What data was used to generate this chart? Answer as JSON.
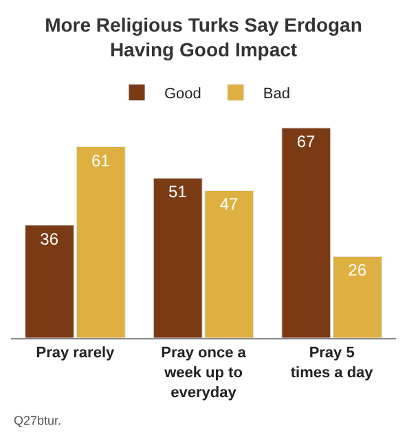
{
  "chart_data": {
    "type": "bar",
    "title": "More Religious Turks Say Erdogan Having Good Impact",
    "categories": [
      "Pray rarely",
      "Pray once a week up to everyday",
      "Pray 5 times a day"
    ],
    "series": [
      {
        "name": "Good",
        "color": "#7a3b14",
        "values": [
          36,
          51,
          67
        ]
      },
      {
        "name": "Bad",
        "color": "#deb041",
        "values": [
          61,
          47,
          26
        ]
      }
    ],
    "data_labels": true,
    "legend": "top",
    "annotations": [
      "Q27btur."
    ]
  }
}
